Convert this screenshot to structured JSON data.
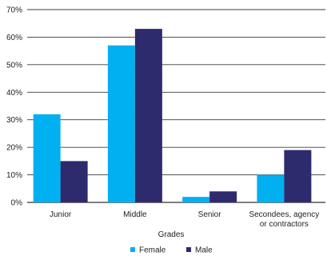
{
  "chart_data": {
    "type": "bar",
    "title": "",
    "xlabel": "Grades",
    "ylabel": "",
    "categories": [
      "Junior",
      "Middle",
      "Senior",
      "Secondees, agency or contractors"
    ],
    "category_lines": [
      [
        "Junior"
      ],
      [
        "Middle"
      ],
      [
        "Senior"
      ],
      [
        "Secondees, agency",
        "or contractors"
      ]
    ],
    "series": [
      {
        "name": "Female",
        "values": [
          32,
          57,
          2,
          10
        ],
        "color": "#00b0f0"
      },
      {
        "name": "Male",
        "values": [
          15,
          63,
          4,
          19
        ],
        "color": "#2e2a6e"
      }
    ],
    "ylim": [
      0,
      70
    ],
    "yticks": [
      0,
      10,
      20,
      30,
      40,
      50,
      60,
      70
    ],
    "ytick_labels": [
      "0%",
      "10%",
      "20%",
      "30%",
      "40%",
      "50%",
      "60%",
      "70%"
    ],
    "grid": true,
    "legend": "bottom-center"
  }
}
